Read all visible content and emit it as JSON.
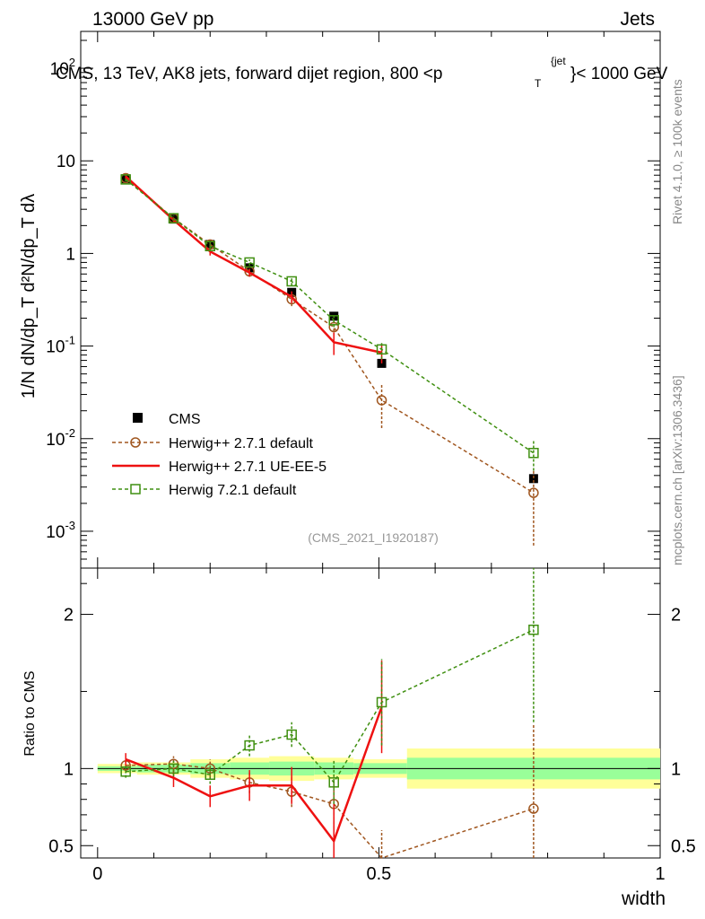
{
  "header": {
    "left": "13000 GeV pp",
    "right": "Jets"
  },
  "plot_title": "CMS, 13 TeV, AK8 jets, forward dijet region, 800 <p",
  "plot_title_sub": "T",
  "plot_title_sup": "{jet",
  "plot_title_end": "}< 1000 GeV",
  "side_top": "Rivet 4.1.0, ≥ 100k events",
  "side_bottom": "mcplots.cern.ch [arXiv:1306.3436]",
  "watermark": "(CMS_2021_I1920187)",
  "ylabel_main": "1/N dN/dp_T d²N/dp_T dλ",
  "ylabel_ratio": "Ratio to CMS",
  "xlabel": "width",
  "colors": {
    "cms": "#000000",
    "herwig_default": "#a0561f",
    "herwig_ueee5": "#ee1111",
    "herwig721": "#3f8f10",
    "band_yellow": "#ffff99",
    "band_green": "#99ff99"
  },
  "chart_data": [
    {
      "type": "line",
      "panel": "main",
      "yscale": "log",
      "xlim": [
        -0.03,
        1.0
      ],
      "ylim": [
        0.0004,
        250
      ],
      "xticks": [
        "0",
        "0.5",
        "1"
      ],
      "yticks": [
        "10^-3",
        "10^-2",
        "10^-1",
        "1",
        "10",
        "10^2"
      ],
      "legend_position": "center-left",
      "series": [
        {
          "name": "CMS",
          "style": "marker-square-filled",
          "x": [
            0.05,
            0.135,
            0.2,
            0.27,
            0.345,
            0.42,
            0.505,
            0.775
          ],
          "y": [
            6.4,
            2.35,
            1.25,
            0.7,
            0.38,
            0.21,
            0.065,
            0.0037
          ]
        },
        {
          "name": "Herwig++ 2.7.1 default",
          "style": "dashed-open-circle",
          "x": [
            0.05,
            0.135,
            0.2,
            0.27,
            0.345,
            0.42,
            0.505,
            0.775
          ],
          "y": [
            6.5,
            2.4,
            1.25,
            0.64,
            0.32,
            0.16,
            0.026,
            0.0026
          ],
          "err_lo": [
            0.3,
            0.15,
            0.1,
            0.07,
            0.05,
            0.03,
            0.013,
            0.0019
          ],
          "err_hi": [
            0.3,
            0.15,
            0.1,
            0.07,
            0.05,
            0.03,
            0.013,
            0.0019
          ]
        },
        {
          "name": "Herwig++ 2.7.1 UE-EE-5",
          "style": "solid",
          "x": [
            0.05,
            0.135,
            0.2,
            0.27,
            0.345,
            0.42,
            0.505
          ],
          "y": [
            6.8,
            2.3,
            1.05,
            0.62,
            0.34,
            0.11,
            0.085
          ],
          "err_lo": [
            0.3,
            0.15,
            0.1,
            0.06,
            0.05,
            0.03,
            0.02
          ],
          "err_hi": [
            0.3,
            0.15,
            0.1,
            0.06,
            0.05,
            0.03,
            0.02
          ]
        },
        {
          "name": "Herwig 7.2.1 default",
          "style": "dashed-open-square",
          "x": [
            0.05,
            0.135,
            0.2,
            0.27,
            0.345,
            0.42,
            0.505,
            0.775
          ],
          "y": [
            6.3,
            2.4,
            1.2,
            0.8,
            0.5,
            0.19,
            0.092,
            0.007
          ],
          "err_lo": [
            0.3,
            0.15,
            0.1,
            0.06,
            0.05,
            0.03,
            0.02,
            0.0025
          ],
          "err_hi": [
            0.3,
            0.15,
            0.1,
            0.06,
            0.05,
            0.03,
            0.02,
            0.0025
          ]
        }
      ]
    },
    {
      "type": "line",
      "panel": "ratio",
      "xlim": [
        -0.03,
        1.0
      ],
      "ylim": [
        0.42,
        2.3
      ],
      "xticks": [
        "0",
        "0.5",
        "1"
      ],
      "yticks": [
        "0.5",
        "1",
        "2"
      ],
      "bands": {
        "edges": [
          0.0,
          0.07,
          0.165,
          0.235,
          0.305,
          0.385,
          0.455,
          0.55,
          1.0
        ],
        "yellow_lo": [
          0.97,
          0.96,
          0.94,
          0.93,
          0.92,
          0.93,
          0.94,
          0.87
        ],
        "yellow_hi": [
          1.03,
          1.04,
          1.06,
          1.07,
          1.08,
          1.07,
          1.06,
          1.13
        ],
        "green_lo": [
          0.985,
          0.975,
          0.965,
          0.96,
          0.955,
          0.96,
          0.965,
          0.93
        ],
        "green_hi": [
          1.015,
          1.025,
          1.035,
          1.04,
          1.045,
          1.04,
          1.035,
          1.07
        ]
      },
      "series": [
        {
          "name": "Herwig++ 2.7.1 default",
          "x": [
            0.05,
            0.135,
            0.2,
            0.27,
            0.345,
            0.42,
            0.505,
            0.775
          ],
          "y": [
            1.02,
            1.03,
            1.0,
            0.91,
            0.85,
            0.77,
            0.4,
            0.74
          ],
          "err_lo": [
            0.04,
            0.05,
            0.06,
            0.07,
            0.1,
            0.16,
            0.2,
            0.55
          ],
          "err_hi": [
            0.04,
            0.05,
            0.06,
            0.07,
            0.1,
            0.16,
            0.2,
            0.55
          ]
        },
        {
          "name": "Herwig++ 2.7.1 UE-EE-5",
          "x": [
            0.05,
            0.135,
            0.2,
            0.27,
            0.345,
            0.42,
            0.505
          ],
          "y": [
            1.06,
            0.94,
            0.82,
            0.89,
            0.89,
            0.53,
            1.4
          ],
          "err_lo": [
            0.04,
            0.06,
            0.07,
            0.1,
            0.12,
            0.25,
            0.3
          ],
          "err_hi": [
            0.04,
            0.06,
            0.07,
            0.1,
            0.12,
            0.25,
            0.3
          ]
        },
        {
          "name": "Herwig 7.2.1 default",
          "x": [
            0.05,
            0.135,
            0.2,
            0.27,
            0.345,
            0.42,
            0.505,
            0.775
          ],
          "y": [
            0.98,
            1.0,
            0.96,
            1.15,
            1.22,
            0.91,
            1.43,
            1.9
          ],
          "err_lo": [
            0.04,
            0.05,
            0.06,
            0.07,
            0.08,
            0.14,
            0.28,
            0.6
          ],
          "err_hi": [
            0.04,
            0.05,
            0.06,
            0.07,
            0.08,
            0.14,
            0.28,
            0.6
          ]
        }
      ]
    }
  ]
}
